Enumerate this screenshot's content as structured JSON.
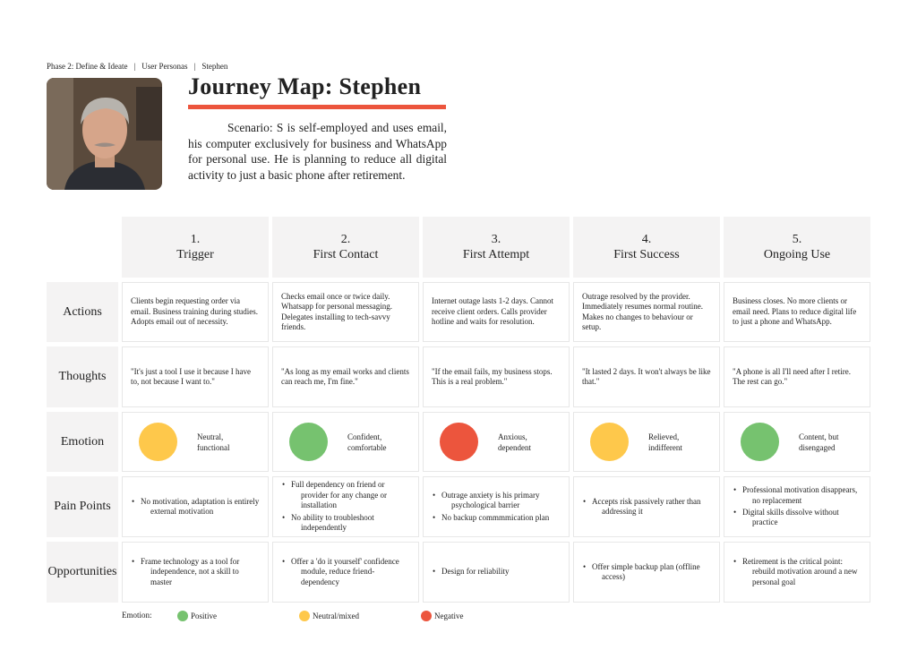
{
  "breadcrumb": [
    "Phase 2: Define & Ideate",
    "User Personas",
    "Stephen"
  ],
  "title": "Journey Map: Stephen",
  "scenario": "Scenario: S is self-employed and uses email, his computer exclusively for business and WhatsApp for personal use. He is planning to reduce all digital activity to just a basic phone after retirement.",
  "phases": [
    {
      "number": "1.",
      "name": "Trigger"
    },
    {
      "number": "2.",
      "name": "First Contact"
    },
    {
      "number": "3.",
      "name": "First Attempt"
    },
    {
      "number": "4.",
      "name": "First Success"
    },
    {
      "number": "5.",
      "name": "Ongoing Use"
    }
  ],
  "rows": [
    {
      "label": "Actions",
      "kind": "text",
      "cells": [
        "Clients begin requesting order via email. Business training during studies. Adopts email out of necessity.",
        "Checks email once or twice daily. Whatsapp for personal messaging. Delegates installing to tech-savvy friends.",
        "Internet outage lasts 1-2 days. Cannot receive client orders. Calls provider hotline and waits for resolution.",
        "Outrage resolved by the provider. Immediately resumes normal routine. Makes no changes to behaviour or setup.",
        "Business closes. No more clients or email need. Plans to reduce digital life to just a phone and WhatsApp."
      ]
    },
    {
      "label": "Thoughts",
      "kind": "text",
      "cells": [
        "\"It's just a tool I use it because I have to, not because I want to.\"",
        "\"As long as my email works and clients can reach me, I'm fine.\"",
        "\"If the email fails, my business stops. This is a real problem.\"",
        "\"It lasted 2 days. It won't always be like that.\"",
        "\"A phone is all I'll need after I retire. The rest can go.\""
      ]
    },
    {
      "label": "Emotion",
      "kind": "emotion",
      "cells": [
        {
          "label": "Neutral, functional",
          "color": "#fec84b"
        },
        {
          "label": "Confident, comfortable",
          "color": "#76c26f"
        },
        {
          "label": "Anxious, dependent",
          "color": "#ec553d"
        },
        {
          "label": "Relieved, indifferent",
          "color": "#fec84b"
        },
        {
          "label": "Content, but disengaged",
          "color": "#76c26f"
        }
      ]
    },
    {
      "label": "Pain Points",
      "kind": "list",
      "cells": [
        [
          "No motivation, adaptation is entirely external motivation"
        ],
        [
          "Full dependency on friend or provider for any change or installation",
          "No ability to troubleshoot independently"
        ],
        [
          "Outrage anxiety is his primary psychological barrier",
          "No backup commmmication plan"
        ],
        [
          "Accepts risk passively rather than addressing it"
        ],
        [
          "Professional motivation disappears, no replacement",
          "Digital skills dissolve without practice"
        ]
      ]
    },
    {
      "label": "Opportunities",
      "kind": "list",
      "cells": [
        [
          "Frame technology as a tool for independence, not a skill to master"
        ],
        [
          "Offer a 'do it yourself' confidence module, reduce friend-dependency"
        ],
        [
          "Design for reliability"
        ],
        [
          "Offer simple backup plan (offline access)"
        ],
        [
          "Retirement is the critical  point: rebuild motivation around a new personal goal"
        ]
      ]
    }
  ],
  "legend": {
    "label": "Emotion:",
    "items": [
      {
        "name": "Positive",
        "color": "#76c26f"
      },
      {
        "name": "Neutral/mixed",
        "color": "#fec84b"
      },
      {
        "name": "Negative",
        "color": "#ec553d"
      }
    ]
  }
}
